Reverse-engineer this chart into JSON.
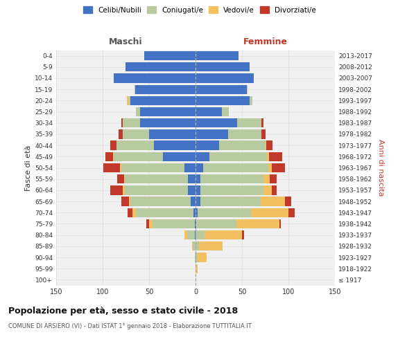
{
  "age_groups": [
    "100+",
    "95-99",
    "90-94",
    "85-89",
    "80-84",
    "75-79",
    "70-74",
    "65-69",
    "60-64",
    "55-59",
    "50-54",
    "45-49",
    "40-44",
    "35-39",
    "30-34",
    "25-29",
    "20-24",
    "15-19",
    "10-14",
    "5-9",
    "0-4"
  ],
  "birth_years": [
    "≤ 1917",
    "1918-1922",
    "1923-1927",
    "1928-1932",
    "1933-1937",
    "1938-1942",
    "1943-1947",
    "1948-1952",
    "1953-1957",
    "1958-1962",
    "1963-1967",
    "1968-1972",
    "1973-1977",
    "1978-1982",
    "1983-1987",
    "1988-1992",
    "1993-1997",
    "1998-2002",
    "2003-2007",
    "2008-2012",
    "2013-2017"
  ],
  "maschi": {
    "celibi": [
      0,
      0,
      0,
      0,
      1,
      1,
      2,
      5,
      8,
      8,
      12,
      35,
      45,
      50,
      60,
      60,
      70,
      65,
      88,
      75,
      55
    ],
    "coniugati": [
      0,
      0,
      1,
      3,
      8,
      45,
      62,
      65,
      68,
      68,
      68,
      53,
      40,
      28,
      18,
      4,
      2,
      1,
      0,
      0,
      0
    ],
    "vedovi": [
      0,
      0,
      0,
      1,
      3,
      4,
      4,
      2,
      2,
      1,
      1,
      1,
      0,
      0,
      0,
      0,
      2,
      0,
      0,
      0,
      0
    ],
    "divorziati": [
      0,
      0,
      0,
      0,
      0,
      3,
      5,
      8,
      14,
      7,
      18,
      8,
      7,
      5,
      2,
      0,
      0,
      0,
      0,
      0,
      0
    ]
  },
  "femmine": {
    "nubili": [
      0,
      0,
      0,
      0,
      0,
      1,
      2,
      5,
      5,
      5,
      8,
      15,
      25,
      35,
      45,
      28,
      58,
      55,
      63,
      58,
      46
    ],
    "coniugate": [
      0,
      0,
      2,
      4,
      10,
      43,
      58,
      65,
      68,
      68,
      70,
      62,
      50,
      36,
      26,
      8,
      3,
      1,
      0,
      0,
      0
    ],
    "vedove": [
      0,
      2,
      10,
      25,
      40,
      46,
      40,
      26,
      9,
      7,
      4,
      2,
      1,
      0,
      0,
      0,
      0,
      0,
      0,
      0,
      0
    ],
    "divorziate": [
      0,
      0,
      0,
      0,
      2,
      2,
      7,
      7,
      5,
      7,
      14,
      14,
      7,
      4,
      2,
      0,
      0,
      0,
      0,
      0,
      0
    ]
  },
  "colors": {
    "celibe": "#4472C4",
    "coniugato": "#B8CBA0",
    "vedovo": "#F2C060",
    "divorziato": "#C0392B"
  },
  "title": "Popolazione per età, sesso e stato civile - 2018",
  "subtitle": "COMUNE DI ARSIERO (VI) - Dati ISTAT 1° gennaio 2018 - Elaborazione TUTTITALIA.IT",
  "label_maschi": "Maschi",
  "label_femmine": "Femmine",
  "ylabel_left": "Fasce di età",
  "ylabel_right": "Anni di nascita",
  "legend_labels": [
    "Celibi/Nubili",
    "Coniugati/e",
    "Vedovi/e",
    "Divorziati/e"
  ],
  "xlim": 150,
  "bg_color": "#ffffff",
  "plot_bg": "#f0f0f0",
  "grid_color": "#dddddd"
}
